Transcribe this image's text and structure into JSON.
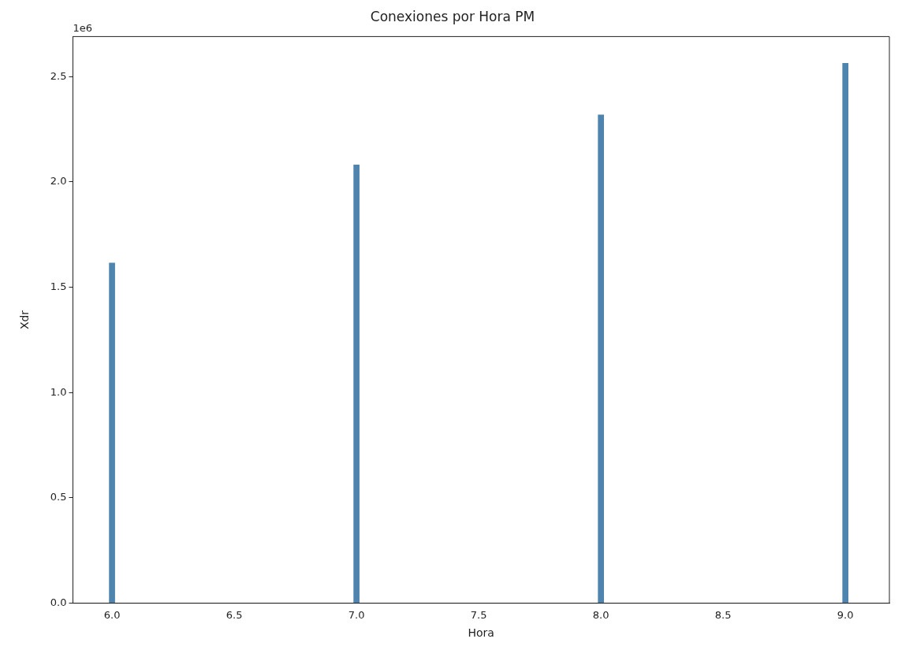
{
  "chart_data": {
    "type": "bar",
    "title": "Conexiones por Hora PM",
    "xlabel": "Hora",
    "ylabel": "Xdr",
    "x": [
      6,
      7,
      8,
      9
    ],
    "values": [
      1.615,
      2.081,
      2.318,
      2.563
    ],
    "color": "#4e84ae",
    "xlim": [
      5.84,
      9.18
    ],
    "xticks": [
      {
        "value": 6,
        "label": "6.0"
      },
      {
        "value": 6.5,
        "label": "6.5"
      },
      {
        "value": 7,
        "label": "7.0"
      },
      {
        "value": 7.5,
        "label": "7.5"
      },
      {
        "value": 8,
        "label": "8.0"
      },
      {
        "value": 8.5,
        "label": "8.5"
      },
      {
        "value": 9,
        "label": "9.0"
      }
    ],
    "ylim": [
      0,
      2.69
    ],
    "yticks": [
      {
        "value": 0,
        "label": "0.0"
      },
      {
        "value": 0.5,
        "label": "0.5"
      },
      {
        "value": 1,
        "label": "1.0"
      },
      {
        "value": 1.5,
        "label": "1.5"
      },
      {
        "value": 2,
        "label": "2.0"
      },
      {
        "value": 2.5,
        "label": "2.5"
      }
    ],
    "annotations": [
      "1e6"
    ],
    "grid": false,
    "legend": false
  }
}
